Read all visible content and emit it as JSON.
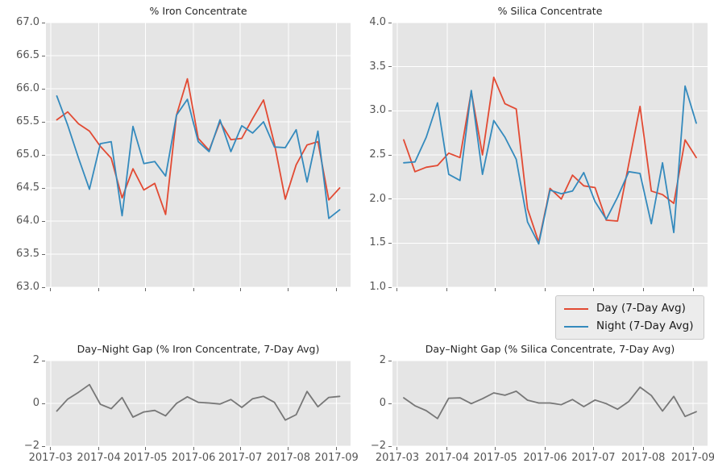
{
  "figure": {
    "background": "#ffffff",
    "style": "ggplot-gray-grid"
  },
  "colors": {
    "day": "#E24A33",
    "night": "#348ABD",
    "gap": "#777777",
    "plot_bg": "#E5E5E5",
    "grid": "#FFFFFF",
    "tick_text": "#555555",
    "tick_mark": "#666666",
    "title_text": "#262626",
    "legend_bg": "#ECECEC",
    "legend_border": "#C9C9C9",
    "legend_text": "#1A1A1A"
  },
  "legend": {
    "position": "below-top-right-chart",
    "items": [
      {
        "label": "Day (7-Day Avg)",
        "series": "day"
      },
      {
        "label": "Night (7-Day Avg)",
        "series": "night"
      }
    ]
  },
  "chart_data": [
    {
      "id": "iron-concentrate",
      "type": "line",
      "title": "% Iron Concentrate",
      "xlabel": "",
      "ylabel": "",
      "grid": true,
      "show_x_tick_labels": false,
      "xlim": [
        "2017-02-26",
        "2017-09-10"
      ],
      "ylim": [
        63.0,
        67.0
      ],
      "yticks": [
        {
          "label": "63.0",
          "value": 63.0
        },
        {
          "label": "63.5",
          "value": 63.5
        },
        {
          "label": "64.0",
          "value": 64.0
        },
        {
          "label": "64.5",
          "value": 64.5
        },
        {
          "label": "65.0",
          "value": 65.0
        },
        {
          "label": "65.5",
          "value": 65.5
        },
        {
          "label": "66.0",
          "value": 66.0
        },
        {
          "label": "66.5",
          "value": 66.5
        },
        {
          "label": "67.0",
          "value": 67.0
        }
      ],
      "xticks": [
        {
          "label": "2017-03",
          "value": "2017-03-01"
        },
        {
          "label": "2017-04",
          "value": "2017-04-01"
        },
        {
          "label": "2017-05",
          "value": "2017-05-01"
        },
        {
          "label": "2017-06",
          "value": "2017-06-01"
        },
        {
          "label": "2017-07",
          "value": "2017-07-01"
        },
        {
          "label": "2017-08",
          "value": "2017-08-01"
        },
        {
          "label": "2017-09",
          "value": "2017-09-01"
        }
      ],
      "x": [
        "2017-03-05",
        "2017-03-12",
        "2017-03-19",
        "2017-03-26",
        "2017-04-02",
        "2017-04-09",
        "2017-04-16",
        "2017-04-23",
        "2017-04-30",
        "2017-05-07",
        "2017-05-14",
        "2017-05-21",
        "2017-05-28",
        "2017-06-04",
        "2017-06-11",
        "2017-06-18",
        "2017-06-25",
        "2017-07-02",
        "2017-07-09",
        "2017-07-16",
        "2017-07-23",
        "2017-07-30",
        "2017-08-06",
        "2017-08-13",
        "2017-08-20",
        "2017-08-27",
        "2017-09-03"
      ],
      "series": [
        {
          "name": "Day (7-Day Avg)",
          "color": "day",
          "values": [
            65.53,
            65.65,
            65.47,
            65.36,
            65.13,
            64.95,
            64.35,
            64.79,
            64.47,
            64.57,
            64.1,
            65.6,
            66.15,
            65.25,
            65.07,
            65.5,
            65.23,
            65.25,
            65.55,
            65.83,
            65.17,
            64.33,
            64.85,
            65.15,
            65.2,
            64.32,
            64.5
          ]
        },
        {
          "name": "Night (7-Day Avg)",
          "color": "night",
          "values": [
            65.89,
            65.45,
            64.95,
            64.48,
            65.17,
            65.2,
            64.08,
            65.43,
            64.87,
            64.9,
            64.68,
            65.6,
            65.84,
            65.2,
            65.05,
            65.53,
            65.05,
            65.44,
            65.33,
            65.5,
            65.12,
            65.11,
            65.38,
            64.59,
            65.36,
            64.04,
            64.17
          ]
        }
      ]
    },
    {
      "id": "silica-concentrate",
      "type": "line",
      "title": "% Silica Concentrate",
      "xlabel": "",
      "ylabel": "",
      "grid": true,
      "show_x_tick_labels": false,
      "xlim": [
        "2017-02-26",
        "2017-09-10"
      ],
      "ylim": [
        1.0,
        4.0
      ],
      "yticks": [
        {
          "label": "1.0",
          "value": 1.0
        },
        {
          "label": "1.5",
          "value": 1.5
        },
        {
          "label": "2.0",
          "value": 2.0
        },
        {
          "label": "2.5",
          "value": 2.5
        },
        {
          "label": "3.0",
          "value": 3.0
        },
        {
          "label": "3.5",
          "value": 3.5
        },
        {
          "label": "4.0",
          "value": 4.0
        }
      ],
      "xticks": [
        {
          "label": "2017-03",
          "value": "2017-03-01"
        },
        {
          "label": "2017-04",
          "value": "2017-04-01"
        },
        {
          "label": "2017-05",
          "value": "2017-05-01"
        },
        {
          "label": "2017-06",
          "value": "2017-06-01"
        },
        {
          "label": "2017-07",
          "value": "2017-07-01"
        },
        {
          "label": "2017-08",
          "value": "2017-08-01"
        },
        {
          "label": "2017-09",
          "value": "2017-09-01"
        }
      ],
      "x": [
        "2017-03-05",
        "2017-03-12",
        "2017-03-19",
        "2017-03-26",
        "2017-04-02",
        "2017-04-09",
        "2017-04-16",
        "2017-04-23",
        "2017-04-30",
        "2017-05-07",
        "2017-05-14",
        "2017-05-21",
        "2017-05-28",
        "2017-06-04",
        "2017-06-11",
        "2017-06-18",
        "2017-06-25",
        "2017-07-02",
        "2017-07-09",
        "2017-07-16",
        "2017-07-23",
        "2017-07-30",
        "2017-08-06",
        "2017-08-13",
        "2017-08-20",
        "2017-08-27",
        "2017-09-03"
      ],
      "series": [
        {
          "name": "Day (7-Day Avg)",
          "color": "day",
          "values": [
            2.67,
            2.31,
            2.36,
            2.38,
            2.52,
            2.47,
            3.22,
            2.5,
            3.38,
            3.08,
            3.02,
            1.89,
            1.51,
            2.12,
            2.0,
            2.27,
            2.15,
            2.13,
            1.76,
            1.75,
            2.4,
            3.05,
            2.09,
            2.05,
            1.95,
            2.67,
            2.47
          ]
        },
        {
          "name": "Night (7-Day Avg)",
          "color": "night",
          "values": [
            2.41,
            2.42,
            2.7,
            3.09,
            2.28,
            2.21,
            3.23,
            2.28,
            2.89,
            2.7,
            2.45,
            1.74,
            1.49,
            2.1,
            2.06,
            2.09,
            2.3,
            1.97,
            1.77,
            2.02,
            2.31,
            2.29,
            1.72,
            2.41,
            1.62,
            3.28,
            2.86
          ]
        }
      ]
    },
    {
      "id": "iron-gap",
      "type": "line",
      "title": "Day–Night Gap (% Iron Concentrate, 7-Day Avg)",
      "xlabel": "",
      "ylabel": "",
      "grid": true,
      "show_x_tick_labels": true,
      "xlim": [
        "2017-02-26",
        "2017-09-10"
      ],
      "ylim": [
        -2,
        2
      ],
      "yticks": [
        {
          "label": "−2",
          "value": -2
        },
        {
          "label": "0",
          "value": 0
        },
        {
          "label": "2",
          "value": 2
        }
      ],
      "xticks": [
        {
          "label": "2017-03",
          "value": "2017-03-01"
        },
        {
          "label": "2017-04",
          "value": "2017-04-01"
        },
        {
          "label": "2017-05",
          "value": "2017-05-01"
        },
        {
          "label": "2017-06",
          "value": "2017-06-01"
        },
        {
          "label": "2017-07",
          "value": "2017-07-01"
        },
        {
          "label": "2017-08",
          "value": "2017-08-01"
        },
        {
          "label": "2017-09",
          "value": "2017-09-01"
        }
      ],
      "x": [
        "2017-03-05",
        "2017-03-12",
        "2017-03-19",
        "2017-03-26",
        "2017-04-02",
        "2017-04-09",
        "2017-04-16",
        "2017-04-23",
        "2017-04-30",
        "2017-05-07",
        "2017-05-14",
        "2017-05-21",
        "2017-05-28",
        "2017-06-04",
        "2017-06-11",
        "2017-06-18",
        "2017-06-25",
        "2017-07-02",
        "2017-07-09",
        "2017-07-16",
        "2017-07-23",
        "2017-07-30",
        "2017-08-06",
        "2017-08-13",
        "2017-08-20",
        "2017-08-27",
        "2017-09-03"
      ],
      "series": [
        {
          "name": "Day−Night Gap",
          "color": "gap",
          "values": [
            -0.36,
            0.2,
            0.52,
            0.88,
            -0.04,
            -0.25,
            0.27,
            -0.64,
            -0.4,
            -0.33,
            -0.58,
            0.0,
            0.31,
            0.05,
            0.02,
            -0.03,
            0.18,
            -0.19,
            0.22,
            0.33,
            0.05,
            -0.78,
            -0.53,
            0.56,
            -0.16,
            0.28,
            0.33
          ]
        }
      ]
    },
    {
      "id": "silica-gap",
      "type": "line",
      "title": "Day–Night Gap (% Silica Concentrate, 7-Day Avg)",
      "xlabel": "",
      "ylabel": "",
      "grid": true,
      "show_x_tick_labels": true,
      "xlim": [
        "2017-02-26",
        "2017-09-10"
      ],
      "ylim": [
        -2,
        2
      ],
      "yticks": [
        {
          "label": "−2",
          "value": -2
        },
        {
          "label": "0",
          "value": 0
        },
        {
          "label": "2",
          "value": 2
        }
      ],
      "xticks": [
        {
          "label": "2017-03",
          "value": "2017-03-01"
        },
        {
          "label": "2017-04",
          "value": "2017-04-01"
        },
        {
          "label": "2017-05",
          "value": "2017-05-01"
        },
        {
          "label": "2017-06",
          "value": "2017-06-01"
        },
        {
          "label": "2017-07",
          "value": "2017-07-01"
        },
        {
          "label": "2017-08",
          "value": "2017-08-01"
        },
        {
          "label": "2017-09",
          "value": "2017-09-01"
        }
      ],
      "x": [
        "2017-03-05",
        "2017-03-12",
        "2017-03-19",
        "2017-03-26",
        "2017-04-02",
        "2017-04-09",
        "2017-04-16",
        "2017-04-23",
        "2017-04-30",
        "2017-05-07",
        "2017-05-14",
        "2017-05-21",
        "2017-05-28",
        "2017-06-04",
        "2017-06-11",
        "2017-06-18",
        "2017-06-25",
        "2017-07-02",
        "2017-07-09",
        "2017-07-16",
        "2017-07-23",
        "2017-07-30",
        "2017-08-06",
        "2017-08-13",
        "2017-08-20",
        "2017-08-27",
        "2017-09-03"
      ],
      "series": [
        {
          "name": "Day−Night Gap",
          "color": "gap",
          "values": [
            0.26,
            -0.11,
            -0.34,
            -0.71,
            0.24,
            0.26,
            -0.01,
            0.22,
            0.49,
            0.38,
            0.57,
            0.15,
            0.02,
            0.02,
            -0.06,
            0.18,
            -0.15,
            0.16,
            -0.01,
            -0.27,
            0.09,
            0.76,
            0.37,
            -0.36,
            0.33,
            -0.61,
            -0.39
          ]
        }
      ]
    }
  ]
}
